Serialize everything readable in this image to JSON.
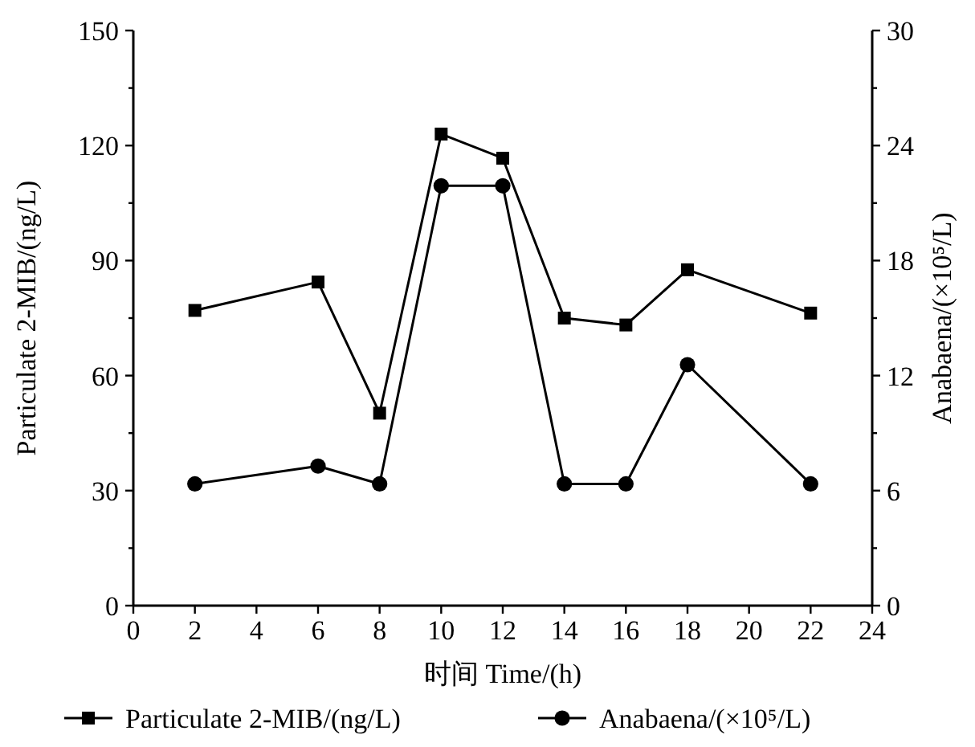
{
  "chart_data": {
    "type": "line",
    "xlabel": "时间 Time/(h)",
    "ylabel": "Particulate 2-MIB/(ng/L)",
    "y2label": "Anabaena/(×10⁵/L)",
    "x": [
      2,
      6,
      8,
      10,
      12,
      14,
      16,
      18,
      22
    ],
    "series": [
      {
        "name": "Particulate 2-MIB/(ng/L)",
        "color": "#000000",
        "marker": "square",
        "values": [
          77.0,
          84.4,
          50.2,
          123.0,
          116.7,
          75.0,
          73.2,
          87.6,
          76.3
        ]
      },
      {
        "name": "Anabaena/(×10⁵/L)",
        "color": "#000000",
        "marker": "circle",
        "axis": "y2",
        "values": [
          6.35,
          7.28,
          6.35,
          21.9,
          21.9,
          6.35,
          6.35,
          12.57,
          6.35
        ]
      }
    ],
    "xlim": [
      0,
      24
    ],
    "xticks": [
      0,
      2,
      4,
      6,
      8,
      10,
      12,
      14,
      16,
      18,
      20,
      22,
      24
    ],
    "ylim": [
      0,
      150
    ],
    "yticks": [
      0,
      30,
      60,
      90,
      120,
      150
    ],
    "y2lim": [
      0,
      30
    ],
    "y2ticks": [
      0,
      6,
      12,
      18,
      24,
      30
    ],
    "grid": false,
    "legend": "bottom",
    "line_style": "solid"
  }
}
